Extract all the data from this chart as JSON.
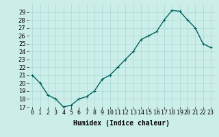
{
  "x": [
    0,
    1,
    2,
    3,
    4,
    5,
    6,
    7,
    8,
    9,
    10,
    11,
    12,
    13,
    14,
    15,
    16,
    17,
    18,
    19,
    20,
    21,
    22,
    23
  ],
  "y": [
    21,
    20,
    18.5,
    18,
    17,
    17.2,
    18,
    18.3,
    19,
    20.5,
    21,
    22,
    23,
    24,
    25.5,
    26,
    26.5,
    28,
    29.2,
    29.1,
    28,
    27,
    25,
    24.5
  ],
  "line_color": "#006060",
  "marker": "+",
  "marker_size": 3,
  "xlabel": "Humidex (Indice chaleur)",
  "xlim": [
    -0.5,
    23.5
  ],
  "ylim": [
    17,
    30
  ],
  "yticks": [
    17,
    18,
    19,
    20,
    21,
    22,
    23,
    24,
    25,
    26,
    27,
    28,
    29
  ],
  "xtick_labels": [
    "0",
    "1",
    "2",
    "3",
    "4",
    "5",
    "6",
    "7",
    "8",
    "9",
    "10",
    "11",
    "12",
    "13",
    "14",
    "15",
    "16",
    "17",
    "18",
    "19",
    "20",
    "21",
    "22",
    "23"
  ],
  "grid_color": "#a8d8d8",
  "background_color": "#cceee8",
  "xlabel_fontsize": 7,
  "tick_fontsize": 6,
  "line_width": 1.0
}
